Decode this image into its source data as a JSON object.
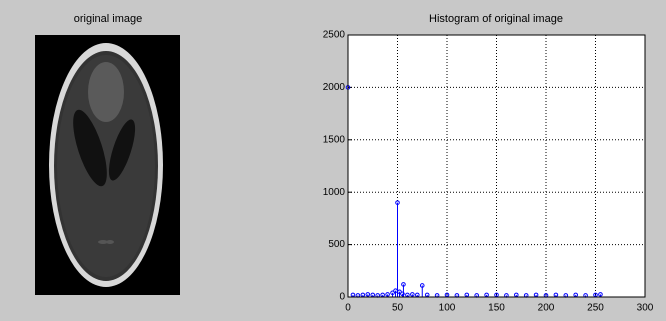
{
  "image": {
    "title": "original image"
  },
  "chart_data": {
    "type": "stem",
    "title": "Histogram of original image",
    "x": [
      0,
      5,
      10,
      15,
      20,
      25,
      30,
      35,
      40,
      45,
      48,
      50,
      52,
      55,
      56,
      60,
      65,
      70,
      75,
      80,
      90,
      100,
      110,
      120,
      130,
      140,
      150,
      160,
      170,
      180,
      190,
      200,
      210,
      220,
      230,
      240,
      250,
      255
    ],
    "values": [
      2000,
      20,
      15,
      20,
      25,
      20,
      15,
      20,
      25,
      40,
      60,
      900,
      50,
      30,
      120,
      20,
      25,
      20,
      110,
      20,
      15,
      20,
      15,
      20,
      15,
      20,
      20,
      15,
      20,
      15,
      20,
      15,
      20,
      15,
      20,
      15,
      20,
      25
    ],
    "color": "#0000ff",
    "xlim": [
      0,
      300
    ],
    "xticks": [
      0,
      50,
      100,
      150,
      200,
      250,
      300
    ],
    "ylim": [
      0,
      2500
    ],
    "yticks": [
      0,
      500,
      1000,
      1500,
      2000,
      2500
    ],
    "grid": true
  }
}
